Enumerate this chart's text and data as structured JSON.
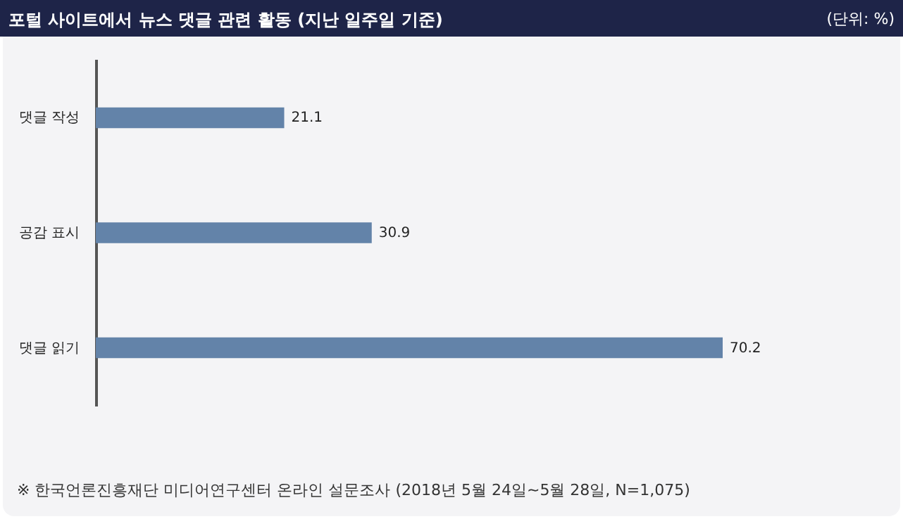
{
  "chart_data": {
    "type": "bar",
    "orientation": "horizontal",
    "title": "포털 사이트에서 뉴스 댓글 관련 활동 (지난 일주일 기준)",
    "subtitle": "(단위: %)",
    "categories": [
      "댓글 작성",
      "공감 표시",
      "댓글 읽기"
    ],
    "values": [
      21.1,
      30.9,
      70.2
    ],
    "color": "#6383a9",
    "data_labels": true,
    "annotations": [
      "※ 한국언론진흥재단 미디어연구센터 온라인 설문조사 (2018년 5월 24일~5월 28일, N=1,075)"
    ]
  }
}
